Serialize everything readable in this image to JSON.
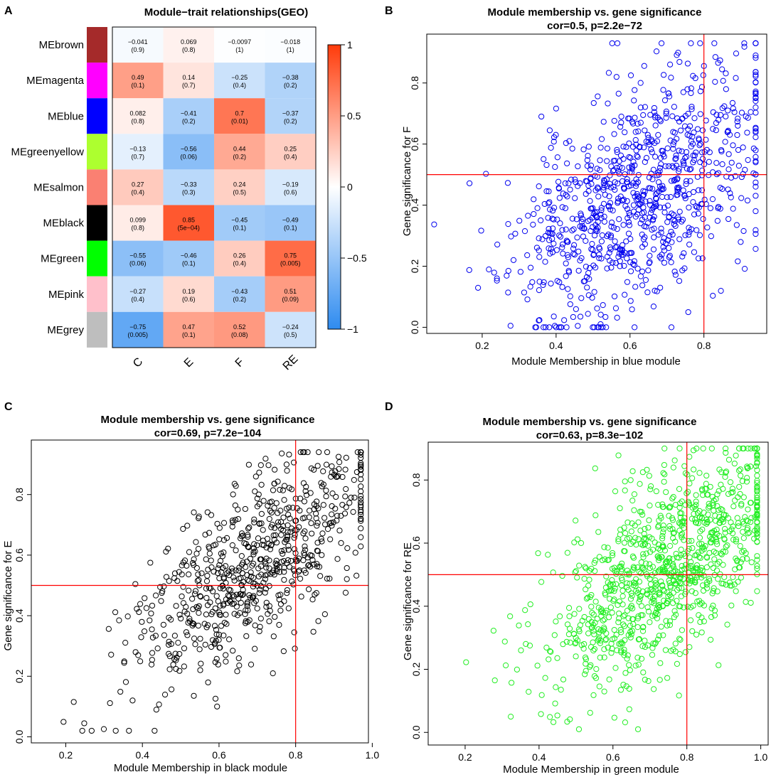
{
  "colors": {
    "low": "#2e8bf0",
    "mid": "#ffffff",
    "high": "#ff3b0a",
    "refline": "#ff0000",
    "blue_points": "#0000ee",
    "black_points": "#000000",
    "green_points": "#22ee22"
  },
  "chart_data": [
    {
      "id": "A",
      "type": "heatmap",
      "panel": "A",
      "title": "Module−trait relationships(GEO)",
      "rows": [
        "MEbrown",
        "MEmagenta",
        "MEblue",
        "MEgreenyellow",
        "MEsalmon",
        "MEblack",
        "MEgreen",
        "MEpink",
        "MEgrey"
      ],
      "row_colors": [
        "#a52a2a",
        "#ff00ff",
        "#0000ff",
        "#adff2f",
        "#fa8072",
        "#000000",
        "#00ff00",
        "#ffc0cb",
        "#bebebe"
      ],
      "columns": [
        "C",
        "E",
        "F",
        "RE"
      ],
      "values": [
        [
          -0.041,
          0.069,
          -0.0097,
          -0.018
        ],
        [
          0.49,
          0.14,
          -0.25,
          -0.38
        ],
        [
          0.082,
          -0.41,
          0.7,
          -0.37
        ],
        [
          -0.13,
          -0.56,
          0.44,
          0.25
        ],
        [
          0.27,
          -0.33,
          0.24,
          -0.19
        ],
        [
          0.099,
          0.85,
          -0.45,
          -0.49
        ],
        [
          -0.55,
          -0.46,
          0.26,
          0.75
        ],
        [
          -0.27,
          0.19,
          -0.43,
          0.51
        ],
        [
          -0.75,
          0.47,
          0.52,
          -0.24
        ]
      ],
      "value_labels": [
        [
          "−0.041",
          "0.069",
          "−0.0097",
          "−0.018"
        ],
        [
          "0.49",
          "0.14",
          "−0.25",
          "−0.38"
        ],
        [
          "0.082",
          "−0.41",
          "0.7",
          "−0.37"
        ],
        [
          "−0.13",
          "−0.56",
          "0.44",
          "0.25"
        ],
        [
          "0.27",
          "−0.33",
          "0.24",
          "−0.19"
        ],
        [
          "0.099",
          "0.85",
          "−0.45",
          "−0.49"
        ],
        [
          "−0.55",
          "−0.46",
          "0.26",
          "0.75"
        ],
        [
          "−0.27",
          "0.19",
          "−0.43",
          "0.51"
        ],
        [
          "−0.75",
          "0.47",
          "0.52",
          "−0.24"
        ]
      ],
      "pvalue_labels": [
        [
          "(0.9)",
          "(0.8)",
          "(1)",
          "(1)"
        ],
        [
          "(0.1)",
          "(0.7)",
          "(0.4)",
          "(0.2)"
        ],
        [
          "(0.8)",
          "(0.2)",
          "(0.01)",
          "(0.2)"
        ],
        [
          "(0.7)",
          "(0.06)",
          "(0.2)",
          "(0.4)"
        ],
        [
          "(0.4)",
          "(0.3)",
          "(0.5)",
          "(0.6)"
        ],
        [
          "(0.8)",
          "(5e−04)",
          "(0.1)",
          "(0.1)"
        ],
        [
          "(0.06)",
          "(0.1)",
          "(0.4)",
          "(0.005)"
        ],
        [
          "(0.4)",
          "(0.6)",
          "(0.2)",
          "(0.09)"
        ],
        [
          "(0.005)",
          "(0.1)",
          "(0.08)",
          "(0.5)"
        ]
      ],
      "legend_range": [
        -1,
        1
      ],
      "legend_ticks": [
        1,
        0.5,
        0,
        -0.5,
        -1
      ],
      "legend_tick_labels": [
        "1",
        "0.5",
        "0",
        "−0.5",
        "−1"
      ]
    },
    {
      "id": "B",
      "type": "scatter",
      "panel": "B",
      "title": "Module membership vs. gene significance",
      "subtitle": "cor=0.5, p=2.2e−72",
      "xlabel": "Module Membership in blue module",
      "ylabel": "Gene significance for  F",
      "xlim": [
        0.05,
        0.97
      ],
      "ylim": [
        -0.02,
        0.96
      ],
      "xticks": [
        0.2,
        0.4,
        0.6,
        0.8
      ],
      "xtick_labels": [
        "0.2",
        "0.4",
        "0.6",
        "0.8"
      ],
      "yticks": [
        0.0,
        0.2,
        0.4,
        0.6,
        0.8
      ],
      "ytick_labels": [
        "0.0",
        "0.2",
        "0.4",
        "0.6",
        "0.8"
      ],
      "vline": 0.8,
      "hline": 0.5,
      "point_color": "#0000ee",
      "n_points": 900,
      "cor": 0.5,
      "x_mean": 0.62,
      "x_sd": 0.17,
      "x_range": [
        0.07,
        0.94
      ],
      "y_mean": 0.44,
      "y_sd": 0.21,
      "y_range": [
        0.0,
        0.93
      ],
      "seed": 11
    },
    {
      "id": "C",
      "type": "scatter",
      "panel": "C",
      "title": "Module membership vs. gene significance",
      "subtitle": "cor=0.69, p=7.2e−104",
      "xlabel": "Module Membership in black module",
      "ylabel": "Gene significance for  E",
      "xlim": [
        0.11,
        0.99
      ],
      "ylim": [
        -0.02,
        0.98
      ],
      "xticks": [
        0.2,
        0.4,
        0.6,
        0.8,
        1.0
      ],
      "xtick_labels": [
        "0.2",
        "0.4",
        "0.6",
        "0.8",
        "1.0"
      ],
      "yticks": [
        0.0,
        0.2,
        0.4,
        0.6,
        0.8
      ],
      "ytick_labels": [
        "0.0",
        "0.2",
        "0.4",
        "0.6",
        "0.8"
      ],
      "vline": 0.8,
      "hline": 0.5,
      "point_color": "#000000",
      "n_points": 700,
      "cor": 0.69,
      "x_mean": 0.68,
      "x_sd": 0.16,
      "x_range": [
        0.14,
        0.97
      ],
      "y_mean": 0.55,
      "y_sd": 0.19,
      "y_range": [
        0.02,
        0.94
      ],
      "seed": 23
    },
    {
      "id": "D",
      "type": "scatter",
      "panel": "D",
      "title": "Module membership vs. gene significance",
      "subtitle": "cor=0.63, p=8.3e−102",
      "xlabel": "Module Membership in green module",
      "ylabel": "Gene significance for  RE",
      "xlim": [
        0.1,
        1.02
      ],
      "ylim": [
        -0.04,
        0.92
      ],
      "xticks": [
        0.2,
        0.4,
        0.6,
        0.8,
        1.0
      ],
      "xtick_labels": [
        "0.2",
        "0.4",
        "0.6",
        "0.8",
        "1.0"
      ],
      "yticks": [
        0.0,
        0.2,
        0.4,
        0.6,
        0.8
      ],
      "ytick_labels": [
        "0.0",
        "0.2",
        "0.4",
        "0.6",
        "0.8"
      ],
      "vline": 0.8,
      "hline": 0.5,
      "point_color": "#22ee22",
      "n_points": 1000,
      "cor": 0.63,
      "x_mean": 0.74,
      "x_sd": 0.16,
      "x_range": [
        0.13,
        0.99
      ],
      "y_mean": 0.52,
      "y_sd": 0.19,
      "y_range": [
        0.01,
        0.9
      ],
      "seed": 37
    }
  ]
}
